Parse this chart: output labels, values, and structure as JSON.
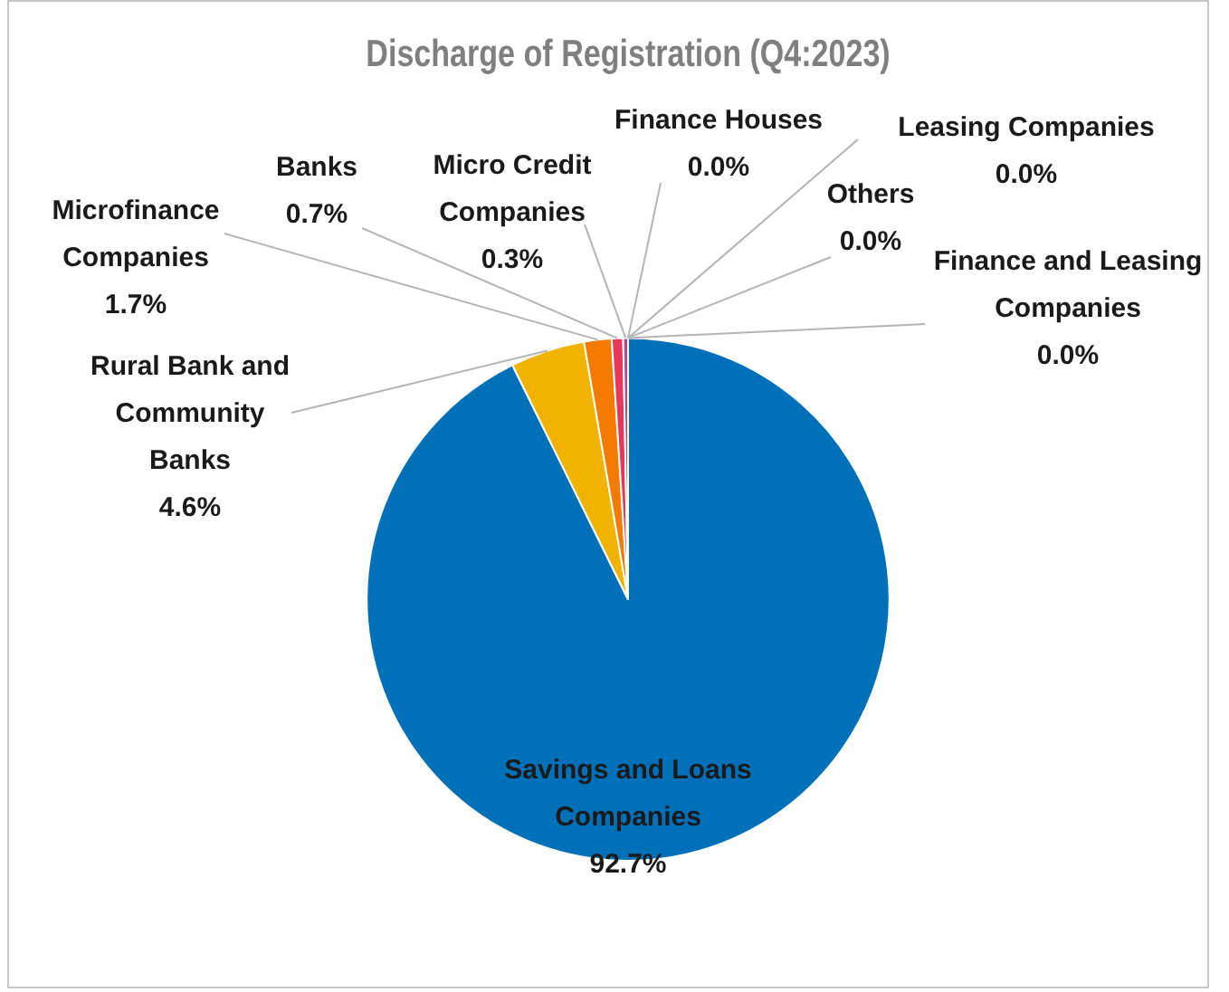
{
  "chart_data": {
    "type": "pie",
    "title": "Discharge of Registration (Q4:2023)",
    "categories": [
      "Savings and Loans Companies",
      "Rural Bank and Community Banks",
      "Microfinance Companies",
      "Banks",
      "Micro Credit Companies",
      "Finance Houses",
      "Leasing Companies",
      "Others",
      "Finance and Leasing Companies"
    ],
    "values": [
      92.7,
      4.6,
      1.7,
      0.7,
      0.3,
      0.0,
      0.0,
      0.0,
      0.0
    ],
    "value_labels": [
      "92.7%",
      "4.6%",
      "1.7%",
      "0.7%",
      "0.3%",
      "0.0%",
      "0.0%",
      "0.0%",
      "0.0%"
    ],
    "colors": [
      "#0070b8",
      "#f0b400",
      "#f47b00",
      "#e8365d",
      "#b04a8c",
      "#7f7f7f",
      "#5b9bd5",
      "#70ad47",
      "#264478"
    ],
    "legend": false
  }
}
